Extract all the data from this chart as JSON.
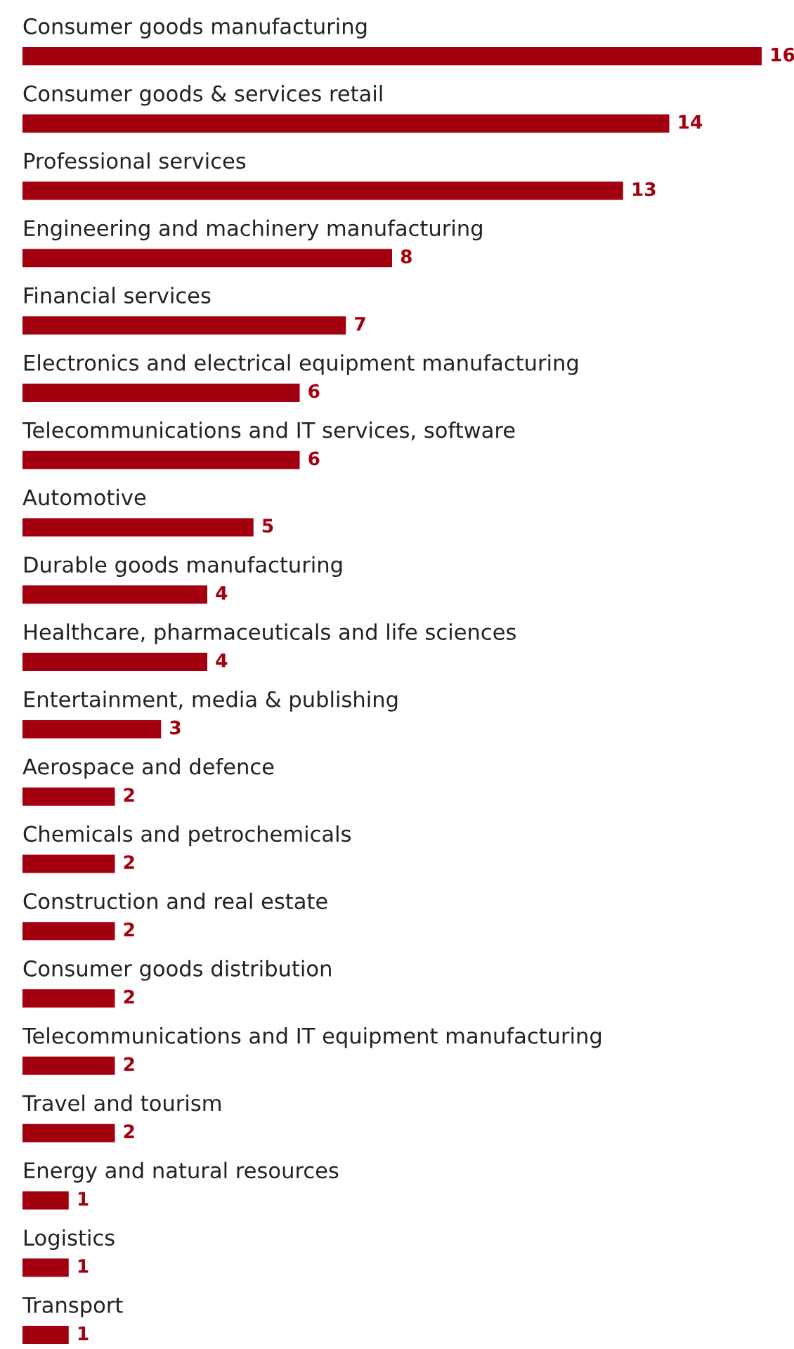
{
  "chart_data": {
    "type": "bar",
    "orientation": "horizontal",
    "data_labels": true,
    "color": "#a3000f",
    "categories": [
      "Consumer goods manufacturing",
      "Consumer goods & services retail",
      "Professional services",
      "Engineering and machinery manufacturing",
      "Financial services",
      "Electronics and electrical equipment manufacturing",
      "Telecommunications and IT services, software",
      "Automotive",
      "Durable goods manufacturing",
      "Healthcare, pharmaceuticals and life sciences",
      "Entertainment, media & publishing",
      "Aerospace and defence",
      "Chemicals and petrochemicals",
      "Construction and real estate",
      "Consumer goods distribution",
      "Telecommunications and IT equipment manufacturing",
      "Travel and tourism",
      "Energy and natural resources",
      "Logistics",
      "Transport"
    ],
    "values": [
      16,
      14,
      13,
      8,
      7,
      6,
      6,
      5,
      4,
      4,
      3,
      2,
      2,
      2,
      2,
      2,
      2,
      1,
      1,
      1
    ]
  }
}
